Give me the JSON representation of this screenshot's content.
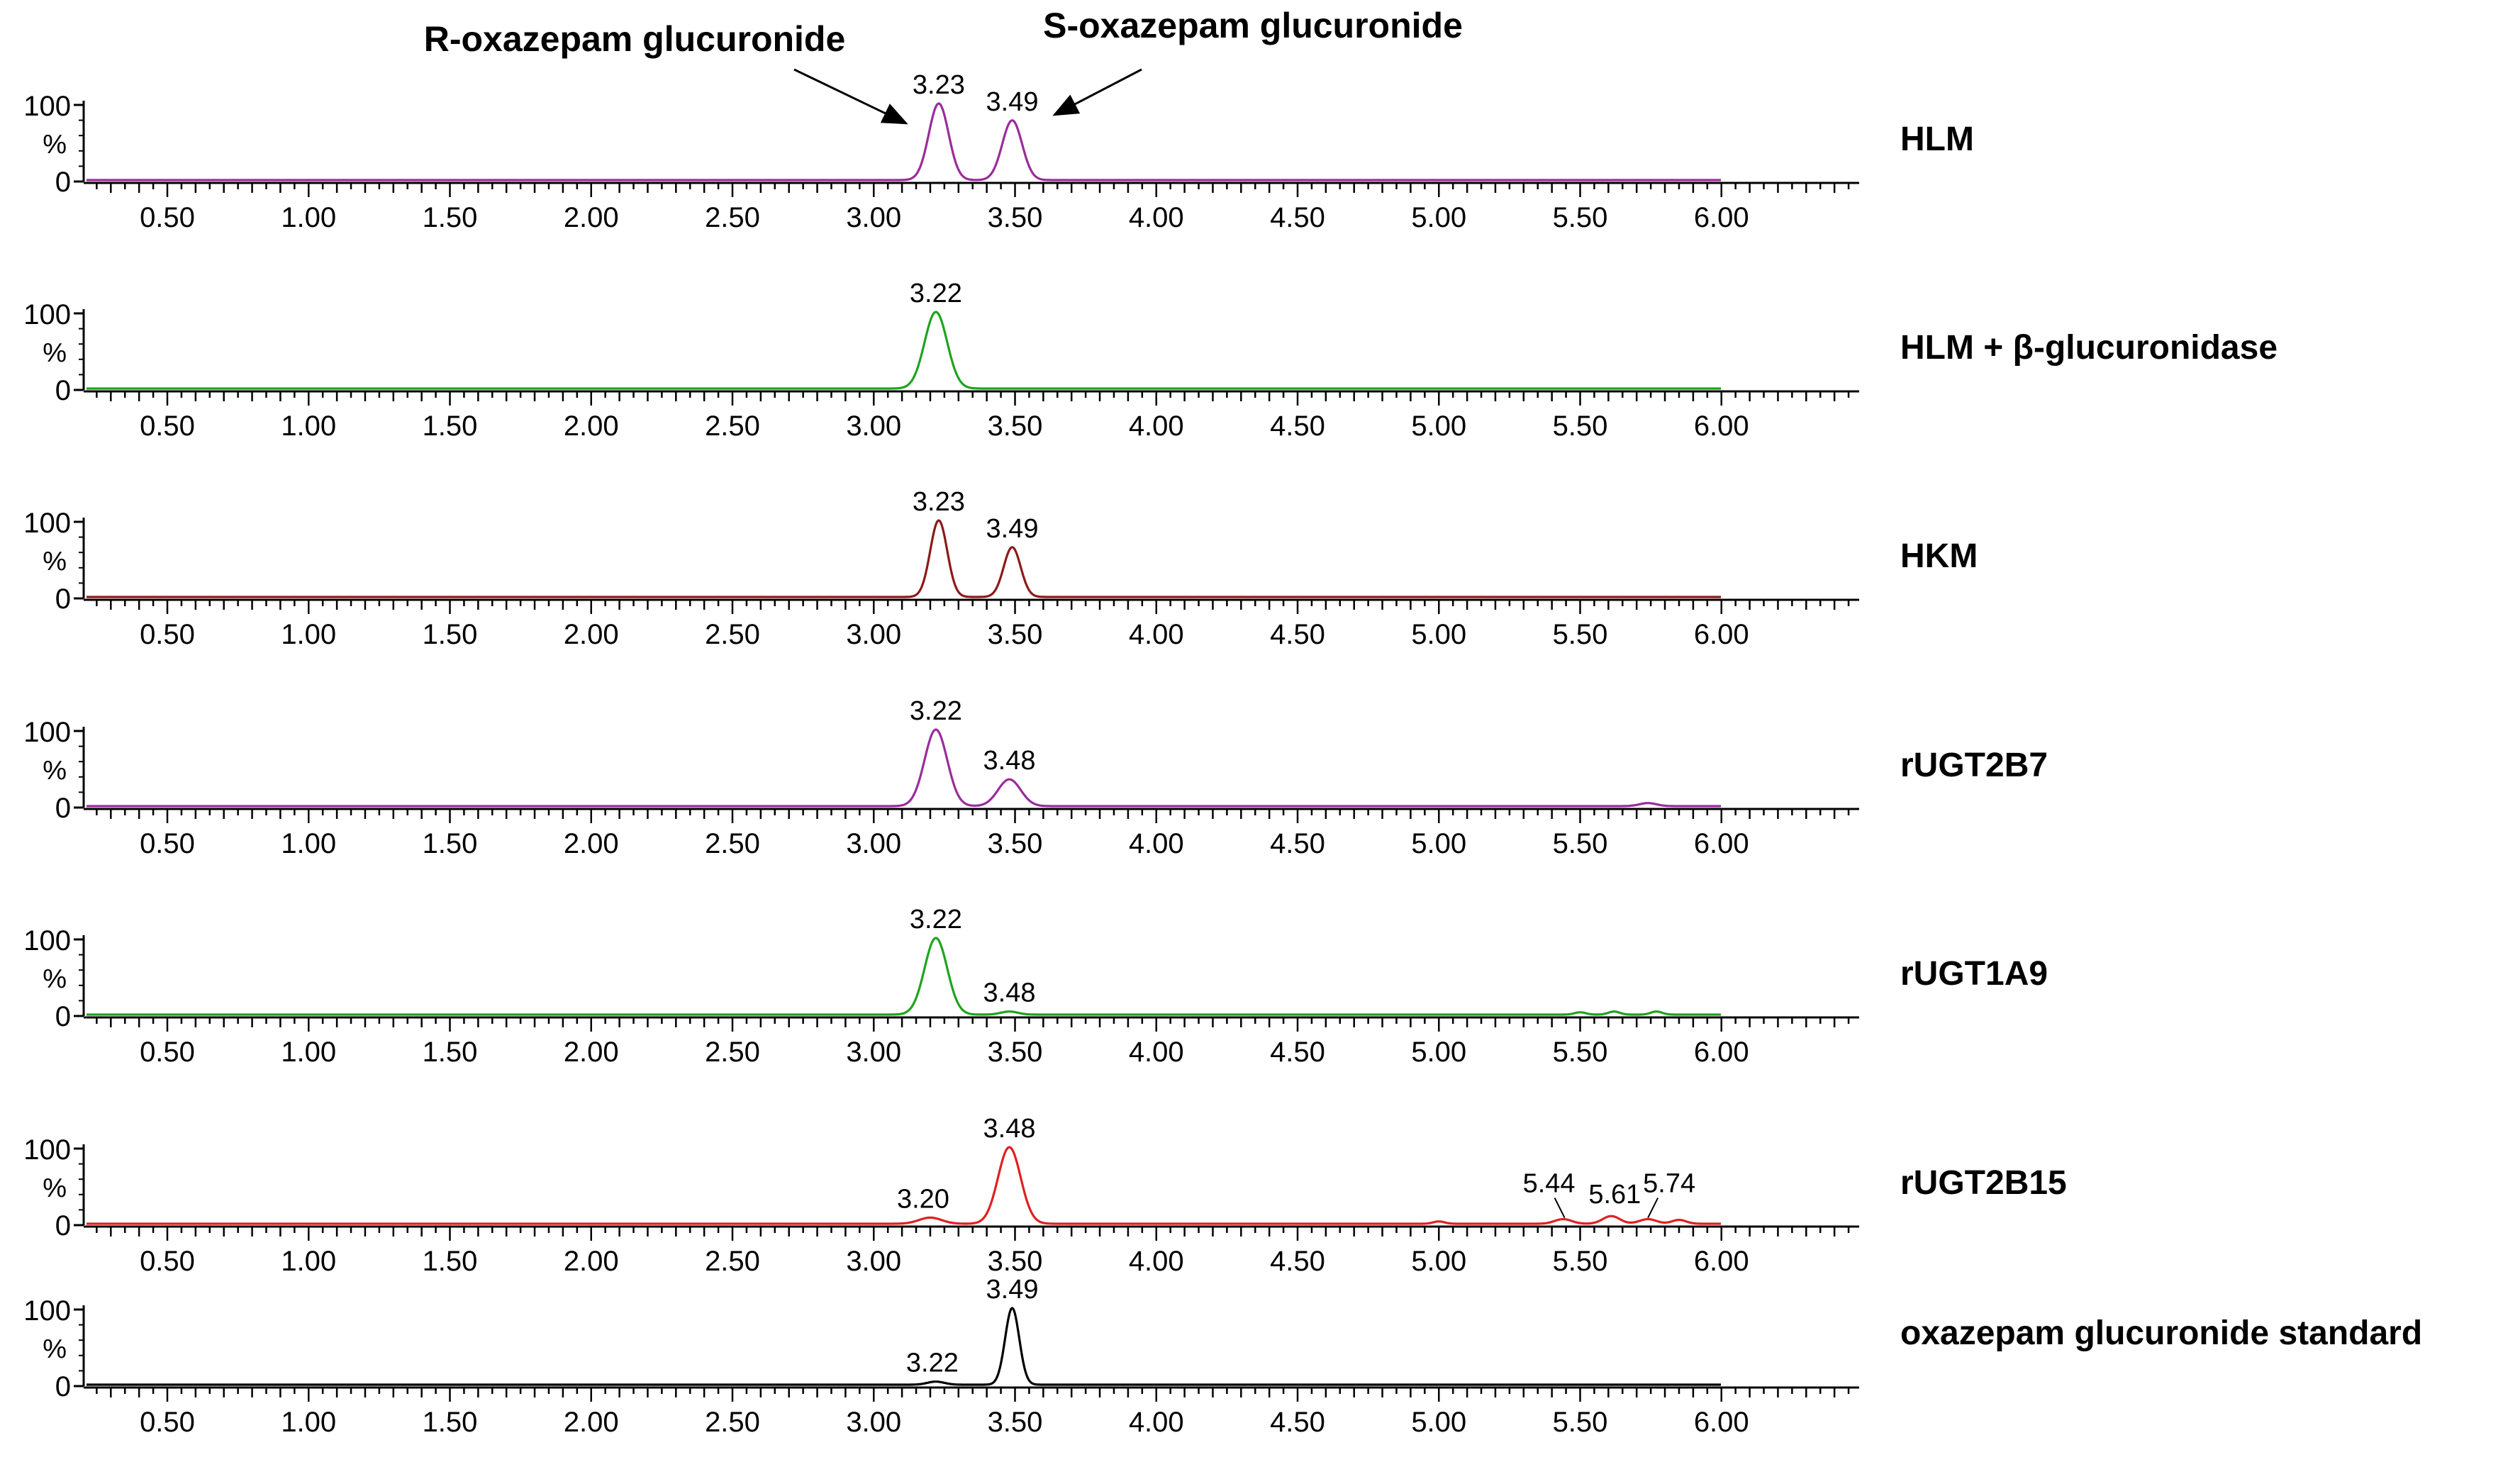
{
  "annotations": {
    "r_label": "R-oxazepam glucuronide",
    "s_label": "S-oxazepam glucuronide"
  },
  "y_axis": {
    "ticks": [
      "100",
      "%",
      "0"
    ]
  },
  "chart_data": [
    {
      "type": "line",
      "name": "HLM",
      "color": "#9a2c9a",
      "xlim": [
        0.2,
        6.45
      ],
      "ylim": [
        0,
        100
      ],
      "x_ticks": [
        "0.50",
        "1.00",
        "1.50",
        "2.00",
        "2.50",
        "3.00",
        "3.50",
        "4.00",
        "4.50",
        "5.00",
        "5.50",
        "6.00"
      ],
      "trace_end": 6.0,
      "peaks": [
        {
          "rt": 3.23,
          "height": 100,
          "width": 0.035,
          "label": "3.23"
        },
        {
          "rt": 3.49,
          "height": 78,
          "width": 0.035,
          "label": "3.49"
        }
      ]
    },
    {
      "type": "line",
      "name": "HLM + β-glucuronidase",
      "color": "#1fa31f",
      "xlim": [
        0.2,
        6.45
      ],
      "ylim": [
        0,
        100
      ],
      "x_ticks": [
        "0.50",
        "1.00",
        "1.50",
        "2.00",
        "2.50",
        "3.00",
        "3.50",
        "4.00",
        "4.50",
        "5.00",
        "5.50",
        "6.00"
      ],
      "trace_end": 6.0,
      "peaks": [
        {
          "rt": 3.22,
          "height": 100,
          "width": 0.04,
          "label": "3.22"
        }
      ]
    },
    {
      "type": "line",
      "name": "HKM",
      "color": "#8b1a1a",
      "xlim": [
        0.2,
        6.45
      ],
      "ylim": [
        0,
        100
      ],
      "x_ticks": [
        "0.50",
        "1.00",
        "1.50",
        "2.00",
        "2.50",
        "3.00",
        "3.50",
        "4.00",
        "4.50",
        "5.00",
        "5.50",
        "6.00"
      ],
      "trace_end": 6.0,
      "peaks": [
        {
          "rt": 3.23,
          "height": 100,
          "width": 0.03,
          "label": "3.23"
        },
        {
          "rt": 3.49,
          "height": 65,
          "width": 0.03,
          "label": "3.49"
        }
      ]
    },
    {
      "type": "line",
      "name": "rUGT2B7",
      "color": "#9a2c9a",
      "xlim": [
        0.2,
        6.45
      ],
      "ylim": [
        0,
        100
      ],
      "x_ticks": [
        "0.50",
        "1.00",
        "1.50",
        "2.00",
        "2.50",
        "3.00",
        "3.50",
        "4.00",
        "4.50",
        "5.00",
        "5.50",
        "6.00"
      ],
      "trace_end": 6.0,
      "peaks": [
        {
          "rt": 3.22,
          "height": 100,
          "width": 0.04,
          "label": "3.22"
        },
        {
          "rt": 3.48,
          "height": 35,
          "width": 0.04,
          "label": "3.48"
        },
        {
          "rt": 5.74,
          "height": 4,
          "width": 0.03
        }
      ]
    },
    {
      "type": "line",
      "name": "rUGT1A9",
      "color": "#1fa31f",
      "xlim": [
        0.2,
        6.45
      ],
      "ylim": [
        0,
        100
      ],
      "x_ticks": [
        "0.50",
        "1.00",
        "1.50",
        "2.00",
        "2.50",
        "3.00",
        "3.50",
        "4.00",
        "4.50",
        "5.00",
        "5.50",
        "6.00"
      ],
      "trace_end": 6.0,
      "peaks": [
        {
          "rt": 3.22,
          "height": 100,
          "width": 0.04,
          "label": "3.22"
        },
        {
          "rt": 3.48,
          "height": 4,
          "width": 0.03,
          "label": "3.48"
        },
        {
          "rt": 5.5,
          "height": 3,
          "width": 0.02
        },
        {
          "rt": 5.62,
          "height": 4,
          "width": 0.02
        },
        {
          "rt": 5.77,
          "height": 4,
          "width": 0.02
        }
      ]
    },
    {
      "type": "line",
      "name": "rUGT2B15",
      "color": "#e02020",
      "xlim": [
        0.2,
        6.45
      ],
      "ylim": [
        0,
        100
      ],
      "x_ticks": [
        "0.50",
        "1.00",
        "1.50",
        "2.00",
        "2.50",
        "3.00",
        "3.50",
        "4.00",
        "4.50",
        "5.00",
        "5.50",
        "6.00"
      ],
      "trace_end": 6.0,
      "peaks": [
        {
          "rt": 3.2,
          "height": 8,
          "width": 0.04,
          "label": "3.20"
        },
        {
          "rt": 3.48,
          "height": 100,
          "width": 0.04,
          "label": "3.48"
        },
        {
          "rt": 5.0,
          "height": 3,
          "width": 0.02
        },
        {
          "rt": 5.44,
          "height": 6,
          "width": 0.03,
          "label": "5.44"
        },
        {
          "rt": 5.61,
          "height": 10,
          "width": 0.03,
          "label": "5.61"
        },
        {
          "rt": 5.74,
          "height": 6,
          "width": 0.03,
          "label": "5.74"
        },
        {
          "rt": 5.85,
          "height": 5,
          "width": 0.025
        }
      ]
    },
    {
      "type": "line",
      "name": "oxazepam glucuronide standard",
      "color": "#000000",
      "xlim": [
        0.2,
        6.45
      ],
      "ylim": [
        0,
        100
      ],
      "x_ticks": [
        "0.50",
        "1.00",
        "1.50",
        "2.00",
        "2.50",
        "3.00",
        "3.50",
        "4.00",
        "4.50",
        "5.00",
        "5.50",
        "6.00"
      ],
      "trace_end": 6.0,
      "peaks": [
        {
          "rt": 3.22,
          "height": 4,
          "width": 0.03,
          "label": "3.22"
        },
        {
          "rt": 3.49,
          "height": 100,
          "width": 0.025,
          "label": "3.49"
        }
      ]
    }
  ]
}
